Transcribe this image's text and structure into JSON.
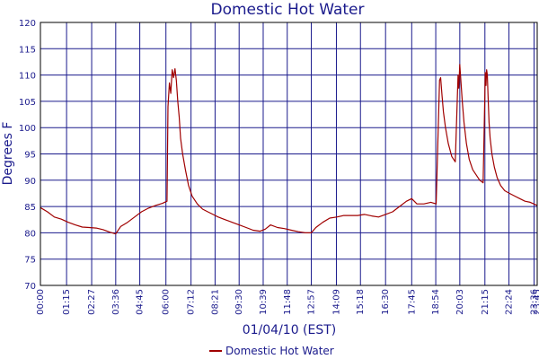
{
  "chart_data": {
    "type": "line",
    "title": "Domestic Hot Water",
    "xlabel": "01/04/10 (EST)",
    "ylabel": "Degrees F",
    "ylim": [
      70,
      120
    ],
    "yticks": [
      70,
      75,
      80,
      85,
      90,
      95,
      100,
      105,
      110,
      115,
      120
    ],
    "xlim": [
      "00:00",
      "23:45"
    ],
    "xticks": [
      "00:00",
      "01:15",
      "02:27",
      "03:36",
      "04:45",
      "06:00",
      "07:12",
      "08:21",
      "09:30",
      "10:39",
      "11:48",
      "12:57",
      "14:09",
      "15:18",
      "16:30",
      "17:45",
      "18:54",
      "20:03",
      "21:15",
      "22:24",
      "23:36",
      "23:45"
    ],
    "grid": true,
    "legend": "bottom",
    "series": [
      {
        "name": "Domestic Hot Water",
        "color": "#a00000",
        "x": [
          "00:00",
          "00:20",
          "00:40",
          "01:00",
          "01:20",
          "01:40",
          "02:00",
          "02:20",
          "02:40",
          "03:00",
          "03:20",
          "03:36",
          "03:50",
          "04:10",
          "04:30",
          "04:50",
          "05:10",
          "05:30",
          "05:50",
          "06:03",
          "06:06",
          "06:10",
          "06:14",
          "06:18",
          "06:22",
          "06:26",
          "06:30",
          "06:34",
          "06:38",
          "06:42",
          "06:48",
          "06:56",
          "07:05",
          "07:15",
          "07:30",
          "07:45",
          "08:00",
          "08:15",
          "08:30",
          "08:50",
          "09:10",
          "09:30",
          "09:50",
          "10:10",
          "10:30",
          "10:45",
          "11:00",
          "11:20",
          "11:40",
          "12:00",
          "12:20",
          "12:40",
          "12:57",
          "13:10",
          "13:30",
          "13:50",
          "14:10",
          "14:30",
          "14:50",
          "15:10",
          "15:30",
          "15:50",
          "16:10",
          "16:30",
          "16:50",
          "17:10",
          "17:30",
          "17:45",
          "18:00",
          "18:20",
          "18:40",
          "18:55",
          "19:05",
          "19:08",
          "19:12",
          "19:16",
          "19:22",
          "19:30",
          "19:40",
          "19:50",
          "19:58",
          "20:00",
          "20:03",
          "20:05",
          "20:07",
          "20:10",
          "20:15",
          "20:22",
          "20:30",
          "20:40",
          "20:50",
          "21:00",
          "21:10",
          "21:16",
          "21:18",
          "21:20",
          "21:22",
          "21:24",
          "21:27",
          "21:30",
          "21:35",
          "21:42",
          "21:50",
          "22:00",
          "22:12",
          "22:25",
          "22:40",
          "22:55",
          "23:10",
          "23:25",
          "23:35",
          "23:45"
        ],
        "values": [
          84.8,
          84.0,
          83.0,
          82.6,
          82.0,
          81.5,
          81.1,
          81.0,
          80.9,
          80.6,
          80.1,
          79.8,
          81.2,
          82.0,
          83.0,
          84.0,
          84.7,
          85.2,
          85.6,
          86.0,
          104.0,
          108.5,
          106.5,
          111.0,
          109.5,
          111.2,
          109.0,
          105.0,
          102.0,
          98.0,
          95.0,
          92.0,
          89.0,
          87.0,
          85.5,
          84.5,
          84.0,
          83.5,
          83.0,
          82.5,
          82.0,
          81.5,
          81.0,
          80.5,
          80.3,
          80.7,
          81.5,
          81.0,
          80.8,
          80.5,
          80.2,
          80.0,
          80.0,
          81.0,
          82.0,
          82.8,
          83.0,
          83.3,
          83.3,
          83.3,
          83.5,
          83.2,
          83.0,
          83.5,
          84.0,
          85.0,
          86.0,
          86.5,
          85.5,
          85.5,
          85.8,
          85.5,
          109.0,
          109.5,
          106.0,
          103.0,
          100.0,
          97.0,
          94.5,
          93.5,
          110.0,
          107.5,
          112.0,
          110.0,
          108.0,
          105.0,
          101.0,
          97.0,
          94.0,
          92.0,
          91.0,
          90.0,
          89.5,
          110.5,
          108.0,
          111.0,
          110.0,
          106.0,
          101.0,
          98.0,
          95.0,
          92.5,
          90.5,
          89.0,
          88.0,
          87.5,
          87.0,
          86.5,
          86.0,
          85.8,
          85.5,
          85.2
        ]
      }
    ]
  }
}
